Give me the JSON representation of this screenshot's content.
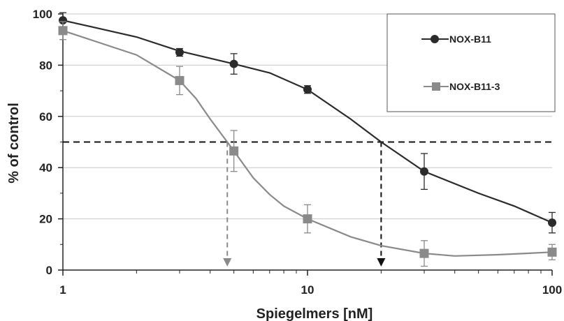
{
  "chart_data": {
    "type": "line",
    "xlabel": "Spiegelmers [nM]",
    "ylabel": "% of control",
    "x_scale": "log",
    "xlim": [
      1,
      100
    ],
    "ylim": [
      0,
      100
    ],
    "x_ticks": [
      1,
      10,
      100
    ],
    "x_tick_labels": [
      "1",
      "10",
      "100"
    ],
    "y_ticks": [
      0,
      20,
      40,
      60,
      80,
      100
    ],
    "y_tick_labels": [
      "0",
      "20",
      "40",
      "60",
      "80",
      "100"
    ],
    "grid": "horizontal",
    "legend_position": "top-right",
    "threshold": {
      "y": 50,
      "style": "dashed",
      "color": "#111111"
    },
    "series": [
      {
        "name": "NOX-B11",
        "marker": "circle",
        "color": "#2b2b2b",
        "x": [
          1,
          3,
          5,
          10,
          30,
          100
        ],
        "y": [
          97.5,
          85,
          80.5,
          70.5,
          38.5,
          18.5
        ],
        "error": [
          3,
          1.5,
          4,
          1.5,
          7,
          4
        ],
        "fit_x": [
          1,
          2,
          3,
          5,
          7,
          10,
          15,
          20,
          30,
          50,
          70,
          100
        ],
        "fit_y": [
          97.5,
          91,
          85.5,
          80.5,
          77,
          70.5,
          59,
          50,
          38.5,
          30,
          25,
          18.5
        ],
        "ic50_x": 20,
        "ic50_color": "#111111"
      },
      {
        "name": "NOX-B11-3",
        "marker": "square",
        "color": "#8a8a8a",
        "x": [
          1,
          3,
          5,
          10,
          30,
          100
        ],
        "y": [
          93.5,
          74,
          46.5,
          20,
          6.5,
          7
        ],
        "error": [
          3.5,
          5.5,
          8,
          5.5,
          5,
          3
        ],
        "fit_x": [
          1,
          2,
          3,
          3.5,
          4,
          4.7,
          5,
          6,
          7,
          8,
          10,
          15,
          20,
          30,
          40,
          60,
          100
        ],
        "fit_y": [
          93.5,
          84,
          74,
          67,
          59,
          50,
          46.5,
          36,
          29.5,
          25,
          20,
          13,
          9.5,
          6.5,
          5.5,
          6,
          7
        ],
        "ic50_x": 4.7,
        "ic50_color": "#8a8a8a"
      }
    ]
  }
}
